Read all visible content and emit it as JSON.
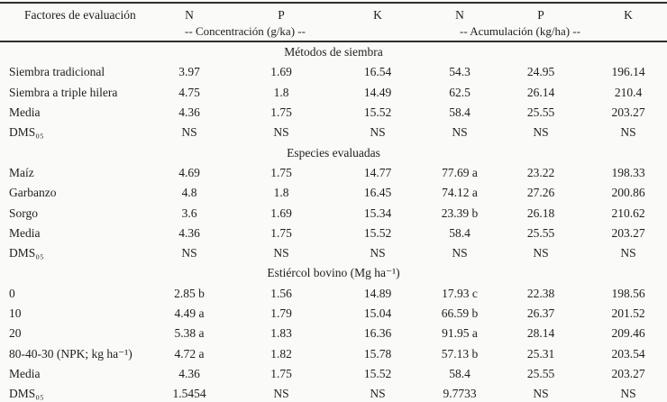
{
  "table": {
    "col_headers": [
      "Factores de evaluación",
      "N",
      "P",
      "K",
      "N",
      "P",
      "K"
    ],
    "group_headers": [
      "-- Concentración (g/ka) --",
      "-- Acumulación (kg/ha) --"
    ],
    "sections": [
      {
        "title": "Métodos de siembra",
        "rows": [
          [
            "Siembra tradicional",
            "3.97",
            "1.69",
            "16.54",
            "54.3",
            "24.95",
            "196.14"
          ],
          [
            "Siembra a triple hilera",
            "4.75",
            "1.8",
            "14.49",
            "62.5",
            "26.14",
            "210.4"
          ],
          [
            "Media",
            "4.36",
            "1.75",
            "15.52",
            "58.4",
            "25.55",
            "203.27"
          ],
          [
            "DMS₀₅",
            "NS",
            "NS",
            "NS",
            "NS",
            "NS",
            "NS"
          ]
        ]
      },
      {
        "title": "Especies evaluadas",
        "rows": [
          [
            "Maíz",
            "4.69",
            "1.75",
            "14.77",
            "77.69 a",
            "23.22",
            "198.33"
          ],
          [
            "Garbanzo",
            "4.8",
            "1.8",
            "16.45",
            "74.12 a",
            "27.26",
            "200.86"
          ],
          [
            "Sorgo",
            "3.6",
            "1.69",
            "15.34",
            "23.39 b",
            "26.18",
            "210.62"
          ],
          [
            "Media",
            "4.36",
            "1.75",
            "15.52",
            "58.4",
            "25.55",
            "203.27"
          ],
          [
            "DMS₀₅",
            "NS",
            "NS",
            "NS",
            "NS",
            "NS",
            "NS"
          ]
        ]
      },
      {
        "title": "Estiércol bovino (Mg ha⁻¹)",
        "rows": [
          [
            "0",
            "2.85 b",
            "1.56",
            "14.89",
            "17.93 c",
            "22.38",
            "198.56"
          ],
          [
            "10",
            "4.49 a",
            "1.79",
            "15.04",
            "66.59 b",
            "26.37",
            "201.52"
          ],
          [
            "20",
            "5.38 a",
            "1.83",
            "16.36",
            "91.95 a",
            "28.14",
            "209.46"
          ],
          [
            "80-40-30 (NPK; kg ha⁻¹)",
            "4.72 a",
            "1.82",
            "15.78",
            "57.13 b",
            "25.31",
            "203.54"
          ],
          [
            "Media",
            "4.36",
            "1.75",
            "15.52",
            "58.4",
            "25.55",
            "203.27"
          ],
          [
            "DMS₀₅",
            "1.5454",
            "NS",
            "NS",
            "9.7733",
            "NS",
            "NS"
          ]
        ]
      }
    ]
  }
}
